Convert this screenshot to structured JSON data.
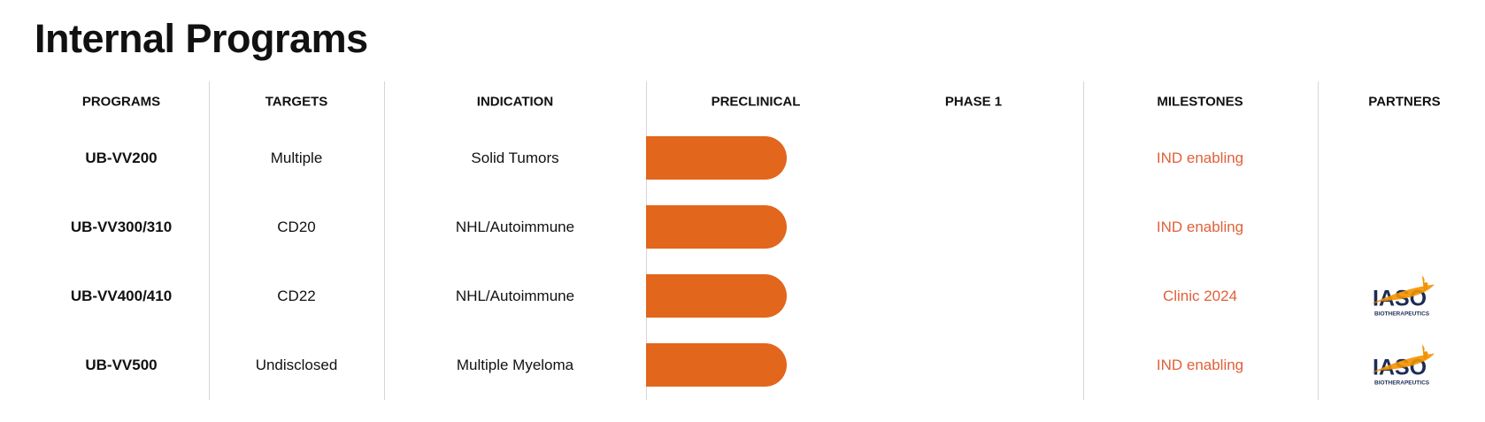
{
  "title": "Internal Programs",
  "headers": [
    "PROGRAMS",
    "TARGETS",
    "INDICATION",
    "PRECLINICAL",
    "PHASE 1",
    "MILESTONES",
    "PARTNERS"
  ],
  "rows": [
    {
      "program": "UB-VV200",
      "target": "Multiple",
      "indication": "Solid Tumors",
      "stage": "Preclinical",
      "milestone": "IND enabling",
      "partner": ""
    },
    {
      "program": "UB-VV300/310",
      "target": "CD20",
      "indication": "NHL/Autoimmune",
      "stage": "Preclinical",
      "milestone": "IND enabling",
      "partner": ""
    },
    {
      "program": "UB-VV400/410",
      "target": "CD22",
      "indication": "NHL/Autoimmune",
      "stage": "Preclinical",
      "milestone": "Clinic 2024",
      "partner": "IASO Biotherapeutics"
    },
    {
      "program": "UB-VV500",
      "target": "Undisclosed",
      "indication": "Multiple Myeloma",
      "stage": "Preclinical",
      "milestone": "IND enabling",
      "partner": "IASO Biotherapeutics"
    }
  ],
  "partner_logo": {
    "word": "IASO",
    "sub": "BIOTHERAPEUTICS"
  },
  "colors": {
    "bar": "#e2661c",
    "milestone": "#e0603a",
    "logo_navy": "#1c2d55",
    "logo_orange": "#f39200"
  }
}
